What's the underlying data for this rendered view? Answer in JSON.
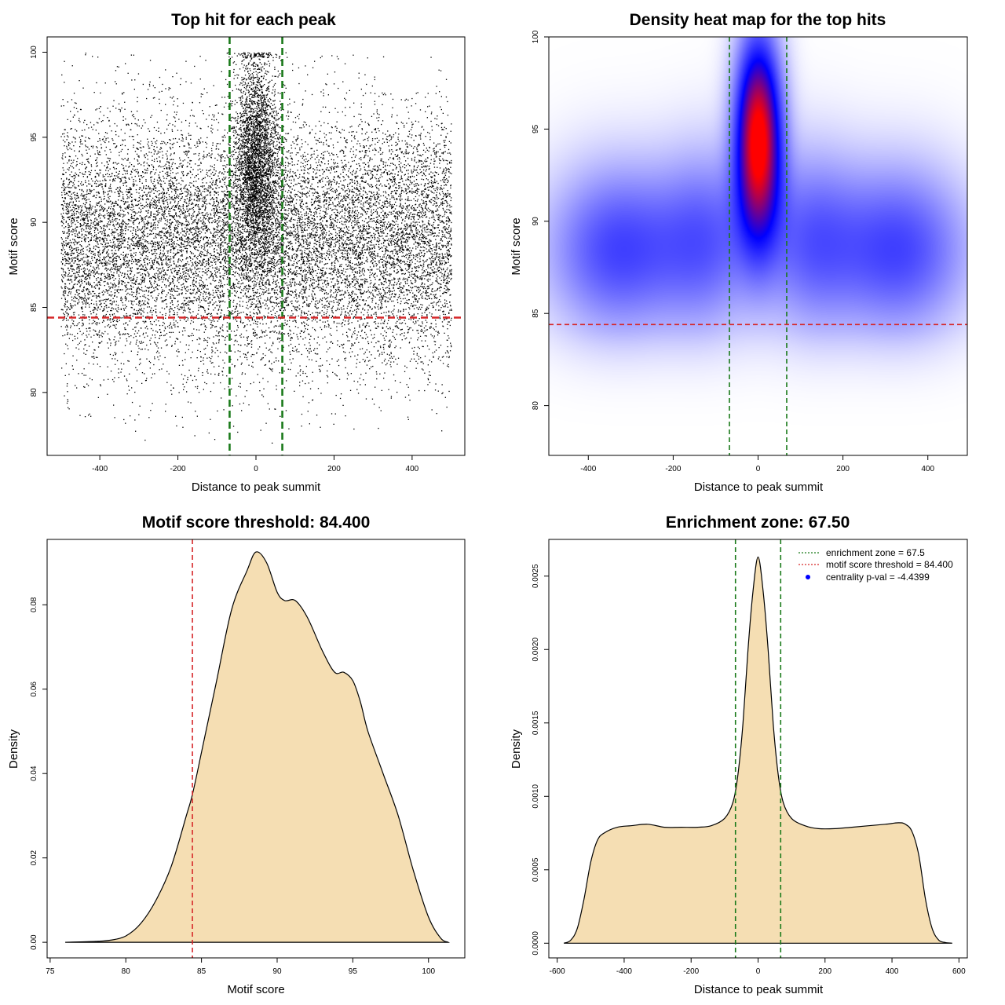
{
  "colors": {
    "scatter_point": "#000000",
    "enrichment_line": "#1a7a1a",
    "threshold_line": "#d62728",
    "density_fill": "#f5deb3",
    "heat_low": "#ffffff",
    "heat_mid": "#0000ff",
    "heat_high": "#ff0000",
    "centrality_dot": "#0000ff"
  },
  "chart_data": [
    {
      "id": "scatter",
      "type": "scatter",
      "title": "Top hit for each peak",
      "xlabel": "Distance to peak summit",
      "ylabel": "Motif score",
      "xlim": [
        -535,
        535
      ],
      "ylim": [
        76.3,
        100.9
      ],
      "xticks": [
        -400,
        -200,
        0,
        200,
        400
      ],
      "yticks": [
        80,
        85,
        90,
        95,
        100
      ],
      "enrichment_lines": [
        -67.5,
        67.5
      ],
      "threshold_line": 84.4,
      "point_cloud": {
        "n_background": 15000,
        "n_central": 3500,
        "x_range": [
          -500,
          500
        ],
        "background_score_mean": 89.0,
        "background_score_sd": 3.6,
        "central_x_sd": 28,
        "central_score_mean": 93.5,
        "central_score_sd": 3.2,
        "score_max": 100
      }
    },
    {
      "id": "heatmap",
      "type": "heatmap",
      "title": "Density heat map for the top hits",
      "xlabel": "Distance to peak summit",
      "ylabel": "Motif score",
      "xlim": [
        -493,
        493
      ],
      "ylim": [
        77.3,
        100
      ],
      "xticks": [
        -400,
        -200,
        0,
        200,
        400
      ],
      "yticks": [
        80,
        85,
        90,
        95,
        100
      ],
      "enrichment_lines": [
        -67.5,
        67.5
      ],
      "threshold_line": 84.4,
      "density_components": [
        {
          "x": 0,
          "y": 94.5,
          "sx": 36,
          "sy": 3.6,
          "w": 1.0
        },
        {
          "x": -330,
          "y": 88.5,
          "sx": 110,
          "sy": 3.0,
          "w": 0.34
        },
        {
          "x": 330,
          "y": 88.5,
          "sx": 110,
          "sy": 3.0,
          "w": 0.34
        },
        {
          "x": -120,
          "y": 89.0,
          "sx": 80,
          "sy": 3.2,
          "w": 0.26
        },
        {
          "x": 120,
          "y": 89.0,
          "sx": 80,
          "sy": 3.2,
          "w": 0.26
        }
      ]
    },
    {
      "id": "score-density",
      "type": "area",
      "title": "Motif score threshold: 84.400",
      "xlabel": "Motif score",
      "ylabel": "Density",
      "xlim": [
        74.8,
        102.4
      ],
      "ylim": [
        -0.0037,
        0.0955
      ],
      "xticks": [
        75,
        80,
        85,
        90,
        95,
        100
      ],
      "yticks": [
        0.0,
        0.02,
        0.04,
        0.06,
        0.08
      ],
      "ytick_labels": [
        "0.00",
        "0.02",
        "0.04",
        "0.06",
        "0.08"
      ],
      "threshold_line": 84.4,
      "x": [
        76,
        78,
        79,
        80,
        81,
        82,
        83,
        84,
        84.4,
        85,
        86,
        87,
        88,
        88.6,
        89.3,
        90,
        90.5,
        91.2,
        92,
        93,
        93.8,
        94.4,
        95,
        95.5,
        96,
        97,
        98,
        99,
        100,
        100.8,
        101.3
      ],
      "y": [
        0.0,
        0.0002,
        0.0005,
        0.0015,
        0.0045,
        0.01,
        0.018,
        0.03,
        0.035,
        0.045,
        0.062,
        0.079,
        0.088,
        0.0925,
        0.09,
        0.083,
        0.081,
        0.081,
        0.077,
        0.069,
        0.064,
        0.064,
        0.062,
        0.057,
        0.05,
        0.04,
        0.03,
        0.017,
        0.006,
        0.001,
        0.0
      ]
    },
    {
      "id": "distance-density",
      "type": "area",
      "title": "Enrichment zone: 67.50",
      "xlabel": "Distance to peak summit",
      "ylabel": "Density",
      "xlim": [
        -625,
        625
      ],
      "ylim": [
        -0.0001,
        0.00275
      ],
      "xticks": [
        -600,
        -400,
        -200,
        0,
        200,
        400,
        600
      ],
      "yticks": [
        0.0,
        0.0005,
        0.001,
        0.0015,
        0.002,
        0.0025
      ],
      "ytick_labels": [
        "0.0000",
        "0.0005",
        "0.0010",
        "0.0015",
        "0.0020",
        "0.0025"
      ],
      "enrichment_lines": [
        -67.5,
        67.5
      ],
      "x": [
        -580,
        -560,
        -540,
        -520,
        -500,
        -480,
        -460,
        -420,
        -380,
        -330,
        -280,
        -230,
        -180,
        -140,
        -100,
        -75,
        -60,
        -45,
        -30,
        -15,
        0,
        15,
        30,
        45,
        60,
        75,
        100,
        140,
        180,
        230,
        280,
        330,
        380,
        420,
        440,
        460,
        480,
        500,
        520,
        540,
        560,
        580
      ],
      "y": [
        0.0,
        2e-05,
        0.0001,
        0.0003,
        0.00055,
        0.0007,
        0.00075,
        0.00079,
        0.0008,
        0.00081,
        0.00079,
        0.00079,
        0.00079,
        0.0008,
        0.00085,
        0.00096,
        0.00115,
        0.0015,
        0.002,
        0.0024,
        0.00263,
        0.0024,
        0.002,
        0.0015,
        0.00115,
        0.00096,
        0.00085,
        0.0008,
        0.00078,
        0.00078,
        0.00079,
        0.0008,
        0.00081,
        0.00082,
        0.00081,
        0.00076,
        0.0006,
        0.0003,
        0.0001,
        2e-05,
        5e-06,
        0.0
      ],
      "legend": [
        {
          "label": "enrichment zone = 67.5",
          "kind": "dotted-line",
          "color": "#1a7a1a"
        },
        {
          "label": "motif score threshold = 84.400",
          "kind": "dotted-line",
          "color": "#d62728"
        },
        {
          "label": "centrality p-val = -4.4399",
          "kind": "dot",
          "color": "#0000ff"
        }
      ]
    }
  ]
}
